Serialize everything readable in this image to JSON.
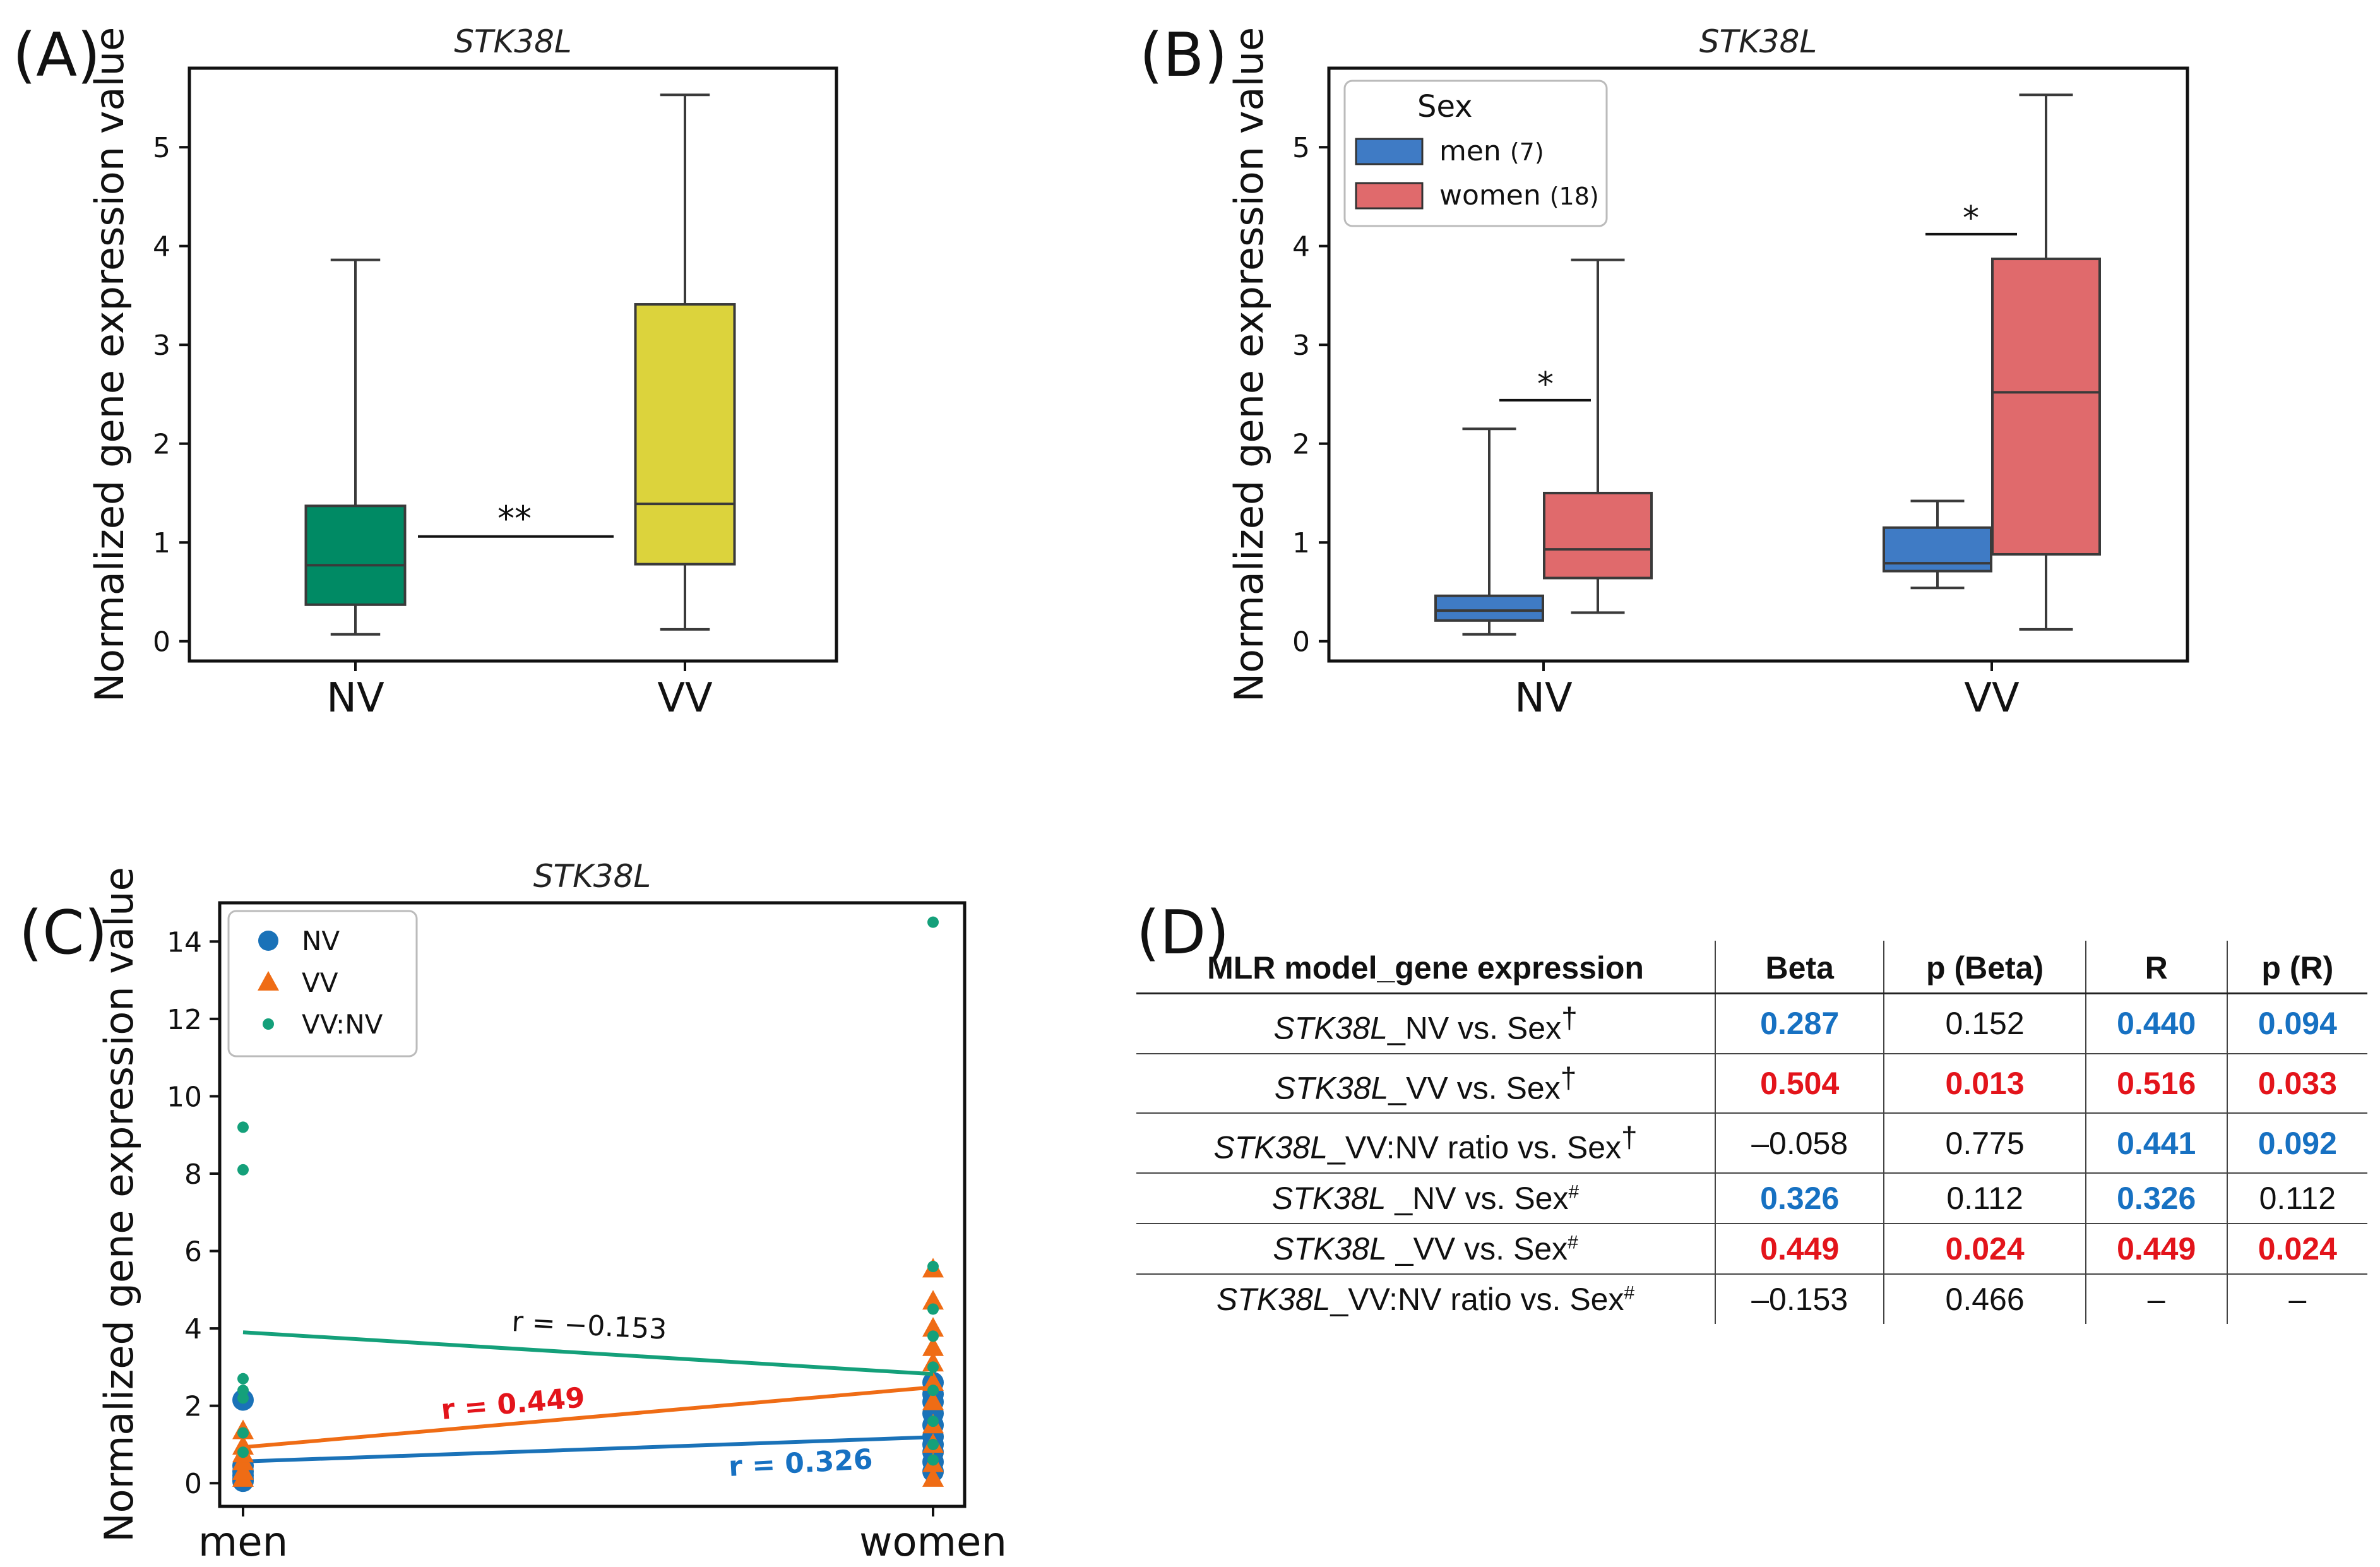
{
  "chart_data": [
    {
      "panel": "(A)",
      "type": "box",
      "title": "STK38L",
      "ylabel": "Normalized gene expression value",
      "ylim": [
        -0.2,
        5.8
      ],
      "yticks": [
        "0",
        "1",
        "2",
        "3",
        "4",
        "5"
      ],
      "categories": [
        "NV",
        "VV"
      ],
      "boxes": [
        {
          "name": "NV",
          "min": 0.07,
          "q1": 0.37,
          "median": 0.77,
          "q3": 1.37,
          "max": 3.86,
          "color": "#008a64"
        },
        {
          "name": "VV",
          "min": 0.12,
          "q1": 0.78,
          "median": 1.39,
          "q3": 3.41,
          "max": 5.53,
          "color": "#dcd33c"
        }
      ],
      "significance": "**"
    },
    {
      "panel": "(B)",
      "type": "box",
      "title": "STK38L",
      "ylabel": "Normalized gene expression value",
      "ylim": [
        -0.2,
        5.8
      ],
      "yticks": [
        "0",
        "1",
        "2",
        "3",
        "4",
        "5"
      ],
      "categories": [
        "NV",
        "VV"
      ],
      "legend": {
        "title": "Sex",
        "entries": [
          {
            "label": "men",
            "count": "(7)",
            "color": "#3f7bc5"
          },
          {
            "label": "women",
            "count": "(18)",
            "color": "#e06a6c"
          }
        ]
      },
      "groups": [
        {
          "category": "NV",
          "series": "men",
          "min": 0.07,
          "q1": 0.21,
          "median": 0.31,
          "q3": 0.46,
          "max": 2.15
        },
        {
          "category": "NV",
          "series": "women",
          "min": 0.29,
          "q1": 0.64,
          "median": 0.93,
          "q3": 1.5,
          "max": 3.86
        },
        {
          "category": "VV",
          "series": "men",
          "min": 0.54,
          "q1": 0.71,
          "median": 0.79,
          "q3": 1.15,
          "max": 1.42
        },
        {
          "category": "VV",
          "series": "women",
          "min": 0.12,
          "q1": 0.88,
          "median": 2.52,
          "q3": 3.87,
          "max": 5.53
        }
      ],
      "significance": [
        "*",
        "*"
      ]
    },
    {
      "panel": "(C)",
      "type": "scatter",
      "title": "STK38L",
      "ylabel": "Normalized gene expression value",
      "ylim": [
        -0.6,
        15
      ],
      "yticks": [
        "0",
        "2",
        "4",
        "6",
        "8",
        "10",
        "12",
        "14"
      ],
      "categories": [
        "men",
        "women"
      ],
      "legend": [
        {
          "label": "NV",
          "color": "#1a72b8",
          "marker": "circle"
        },
        {
          "label": "VV",
          "color": "#ef6c15",
          "marker": "triangle"
        },
        {
          "label": "VV:NV",
          "color": "#14a07a",
          "marker": "small-circle"
        }
      ],
      "series": [
        {
          "name": "NV",
          "color": "#1a72b8",
          "men": [
            0.05,
            0.1,
            0.2,
            0.3,
            0.45,
            2.15
          ],
          "women": [
            0.3,
            0.55,
            0.8,
            1.0,
            1.2,
            1.5,
            1.8,
            2.1,
            2.3,
            2.6
          ],
          "fit": [
            0.56,
            1.19
          ],
          "r_label": "r =  0.326"
        },
        {
          "name": "VV",
          "color": "#ef6c15",
          "men": [
            0.12,
            0.3,
            0.55,
            0.75,
            0.95,
            1.35
          ],
          "women": [
            0.12,
            0.5,
            1.0,
            1.5,
            2.1,
            2.6,
            3.1,
            3.5,
            4.0,
            4.7,
            5.53
          ],
          "fit": [
            0.93,
            2.48
          ],
          "r_label": "r =  0.449"
        },
        {
          "name": "VV:NV",
          "color": "#14a07a",
          "men": [
            0.8,
            1.3,
            2.2,
            2.4,
            2.7,
            8.1,
            9.2
          ],
          "women": [
            0.6,
            1.0,
            1.6,
            2.4,
            3.0,
            3.8,
            4.5,
            5.6,
            14.5
          ],
          "fit": [
            3.9,
            2.82
          ],
          "r_label": "r = −0.153"
        }
      ]
    },
    {
      "panel": "(D)",
      "type": "table",
      "headers": [
        "MLR model_gene expression",
        "Beta",
        "p (Beta)",
        "R",
        "p (R)"
      ],
      "rows": [
        {
          "gene": "STK38L",
          "rest": "_NV vs. Sex†",
          "cells": [
            {
              "v": "0.287",
              "c": "blue"
            },
            {
              "v": "0.152",
              "c": ""
            },
            {
              "v": "0.440",
              "c": "blue"
            },
            {
              "v": "0.094",
              "c": "blue"
            }
          ]
        },
        {
          "gene": "STK38L",
          "rest": "_VV vs. Sex†",
          "cells": [
            {
              "v": "0.504",
              "c": "red"
            },
            {
              "v": "0.013",
              "c": "red"
            },
            {
              "v": "0.516",
              "c": "red"
            },
            {
              "v": "0.033",
              "c": "red"
            }
          ]
        },
        {
          "gene": "STK38L",
          "rest": "_VV:NV ratio vs. Sex†",
          "cells": [
            {
              "v": "–0.058",
              "c": ""
            },
            {
              "v": "0.775",
              "c": ""
            },
            {
              "v": "0.441",
              "c": "blue"
            },
            {
              "v": "0.092",
              "c": "blue"
            }
          ]
        },
        {
          "gene": "STK38L",
          "rest": " _NV vs. Sex#",
          "cells": [
            {
              "v": "0.326",
              "c": "blue"
            },
            {
              "v": "0.112",
              "c": ""
            },
            {
              "v": "0.326",
              "c": "blue"
            },
            {
              "v": "0.112",
              "c": ""
            }
          ]
        },
        {
          "gene": "STK38L",
          "rest": " _VV vs. Sex#",
          "cells": [
            {
              "v": "0.449",
              "c": "red"
            },
            {
              "v": "0.024",
              "c": "red"
            },
            {
              "v": "0.449",
              "c": "red"
            },
            {
              "v": "0.024",
              "c": "red"
            }
          ]
        },
        {
          "gene": "STK38L",
          "rest": "_VV:NV ratio vs. Sex#",
          "cells": [
            {
              "v": "–0.153",
              "c": ""
            },
            {
              "v": "0.466",
              "c": ""
            },
            {
              "v": "–",
              "c": ""
            },
            {
              "v": "–",
              "c": ""
            }
          ]
        }
      ]
    }
  ],
  "panel_labels": [
    "(A)",
    "(B)",
    "(C)",
    "(D)"
  ]
}
